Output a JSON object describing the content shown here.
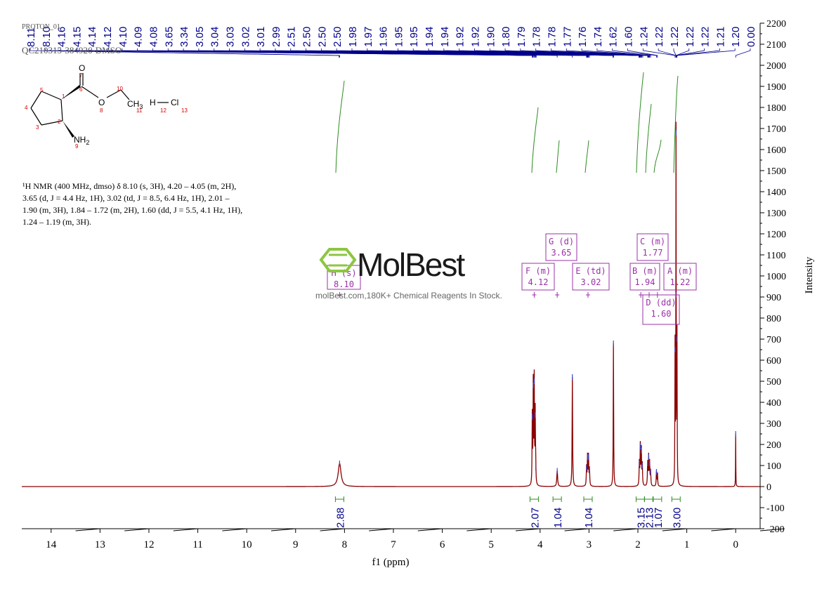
{
  "header": {
    "experiment": "PROTON_01",
    "sample": "QC210315-384926-DMSO"
  },
  "structure": {
    "atoms": {
      "o_carbonyl": "O",
      "o_ester": "O",
      "ch3": "CH",
      "ch3_sub": "3",
      "nh": "NH",
      "nh_sub": "2",
      "h": "H",
      "cl": "Cl"
    },
    "numbers": [
      "1",
      "2",
      "3",
      "4",
      "5",
      "6",
      "7",
      "8",
      "9",
      "10",
      "11",
      "12",
      "13"
    ]
  },
  "nmr_text": {
    "lines": [
      "¹H NMR (400 MHz, dmso) δ 8.10 (s, 3H), 4.20 – 4.05 (m, 2H),",
      "3.65 (d, J = 4.4 Hz, 1H), 3.02 (td, J = 8.5, 6.4 Hz, 1H), 2.01 –",
      "1.90 (m, 3H), 1.84 – 1.72 (m, 2H), 1.60 (dd, J = 5.5, 4.1 Hz, 1H),",
      "1.24 – 1.19 (m, 3H)."
    ]
  },
  "watermark": {
    "brand": "MolBest",
    "tagline": "molBest.com,180K+ Chemical Reagents In Stock."
  },
  "chart_data": {
    "type": "line",
    "title": "",
    "xlabel": "f1 (ppm)",
    "ylabel": "Intensity",
    "xlim": [
      14.6,
      -0.5
    ],
    "ylim": [
      -200,
      2200
    ],
    "x_ticks": [
      14,
      13,
      12,
      11,
      10,
      9,
      8,
      7,
      6,
      5,
      4,
      3,
      2,
      1,
      0
    ],
    "y_ticks": [
      -200,
      -100,
      0,
      100,
      200,
      300,
      400,
      500,
      600,
      700,
      800,
      900,
      1000,
      1100,
      1200,
      1300,
      1400,
      1500,
      1600,
      1700,
      1800,
      1900,
      2000,
      2100,
      2200
    ],
    "peaks": [
      {
        "ppm": 8.1,
        "height": 110,
        "width": 0.035
      },
      {
        "ppm": 4.16,
        "height": 330,
        "width": 0.005
      },
      {
        "ppm": 4.14,
        "height": 480,
        "width": 0.005
      },
      {
        "ppm": 4.12,
        "height": 500,
        "width": 0.005
      },
      {
        "ppm": 4.1,
        "height": 340,
        "width": 0.005
      },
      {
        "ppm": 4.09,
        "height": 90,
        "width": 0.005
      },
      {
        "ppm": 3.65,
        "height": 75,
        "width": 0.01
      },
      {
        "ppm": 3.34,
        "height": 520,
        "width": 0.006
      },
      {
        "ppm": 3.05,
        "height": 90,
        "width": 0.006
      },
      {
        "ppm": 3.03,
        "height": 140,
        "width": 0.006
      },
      {
        "ppm": 3.01,
        "height": 140,
        "width": 0.006
      },
      {
        "ppm": 2.99,
        "height": 80,
        "width": 0.006
      },
      {
        "ppm": 2.5,
        "height": 680,
        "width": 0.005
      },
      {
        "ppm": 1.97,
        "height": 110,
        "width": 0.006
      },
      {
        "ppm": 1.95,
        "height": 190,
        "width": 0.006
      },
      {
        "ppm": 1.93,
        "height": 170,
        "width": 0.006
      },
      {
        "ppm": 1.91,
        "height": 100,
        "width": 0.006
      },
      {
        "ppm": 1.8,
        "height": 110,
        "width": 0.006
      },
      {
        "ppm": 1.78,
        "height": 140,
        "width": 0.006
      },
      {
        "ppm": 1.76,
        "height": 110,
        "width": 0.006
      },
      {
        "ppm": 1.74,
        "height": 70,
        "width": 0.006
      },
      {
        "ppm": 1.62,
        "height": 70,
        "width": 0.006
      },
      {
        "ppm": 1.6,
        "height": 60,
        "width": 0.006
      },
      {
        "ppm": 1.24,
        "height": 650,
        "width": 0.004
      },
      {
        "ppm": 1.22,
        "height": 1680,
        "width": 0.004
      },
      {
        "ppm": 1.2,
        "height": 700,
        "width": 0.004
      },
      {
        "ppm": 0.0,
        "height": 250,
        "width": 0.003
      }
    ],
    "peak_labels": [
      "8.11",
      "8.10",
      "4.16",
      "4.15",
      "4.14",
      "4.12",
      "4.10",
      "4.09",
      "4.08",
      "3.65",
      "3.34",
      "3.05",
      "3.04",
      "3.03",
      "3.02",
      "3.01",
      "2.99",
      "2.51",
      "2.50",
      "2.50",
      "2.50",
      "1.98",
      "1.97",
      "1.96",
      "1.95",
      "1.95",
      "1.94",
      "1.94",
      "1.92",
      "1.92",
      "1.90",
      "1.80",
      "1.79",
      "1.78",
      "1.78",
      "1.77",
      "1.76",
      "1.74",
      "1.62",
      "1.60",
      "1.24",
      "1.22",
      "1.22",
      "1.22",
      "1.22",
      "1.21",
      "1.20",
      "0.00"
    ],
    "multiplets": [
      {
        "letter": "H",
        "type": "s",
        "shift": "8.10",
        "ppm": 8.1
      },
      {
        "letter": "F",
        "type": "m",
        "shift": "4.12",
        "ppm": 4.12
      },
      {
        "letter": "G",
        "type": "d",
        "shift": "3.65",
        "ppm": 3.65
      },
      {
        "letter": "E",
        "type": "td",
        "shift": "3.02",
        "ppm": 3.02
      },
      {
        "letter": "B",
        "type": "m",
        "shift": "1.94",
        "ppm": 1.94
      },
      {
        "letter": "C",
        "type": "m",
        "shift": "1.77",
        "ppm": 1.77
      },
      {
        "letter": "D",
        "type": "dd",
        "shift": "1.60",
        "ppm": 1.6
      },
      {
        "letter": "A",
        "type": "m",
        "shift": "1.22",
        "ppm": 1.22
      }
    ],
    "integrals": [
      {
        "ppm": 8.1,
        "value": "2.88"
      },
      {
        "ppm": 4.12,
        "value": "2.07"
      },
      {
        "ppm": 3.65,
        "value": "1.04"
      },
      {
        "ppm": 3.02,
        "value": "1.04"
      },
      {
        "ppm": 1.95,
        "value": "3.15"
      },
      {
        "ppm": 1.78,
        "value": "2.13"
      },
      {
        "ppm": 1.6,
        "value": "1.07"
      },
      {
        "ppm": 1.22,
        "value": "3.00"
      }
    ],
    "grid": false,
    "colors": {
      "spectrum": "#8b0000",
      "labels": "#00008b",
      "integral": "#2e8b22",
      "multiplet_box": "#9b30a8",
      "axis": "#000000",
      "watermark_green": "#8cc63f"
    }
  }
}
